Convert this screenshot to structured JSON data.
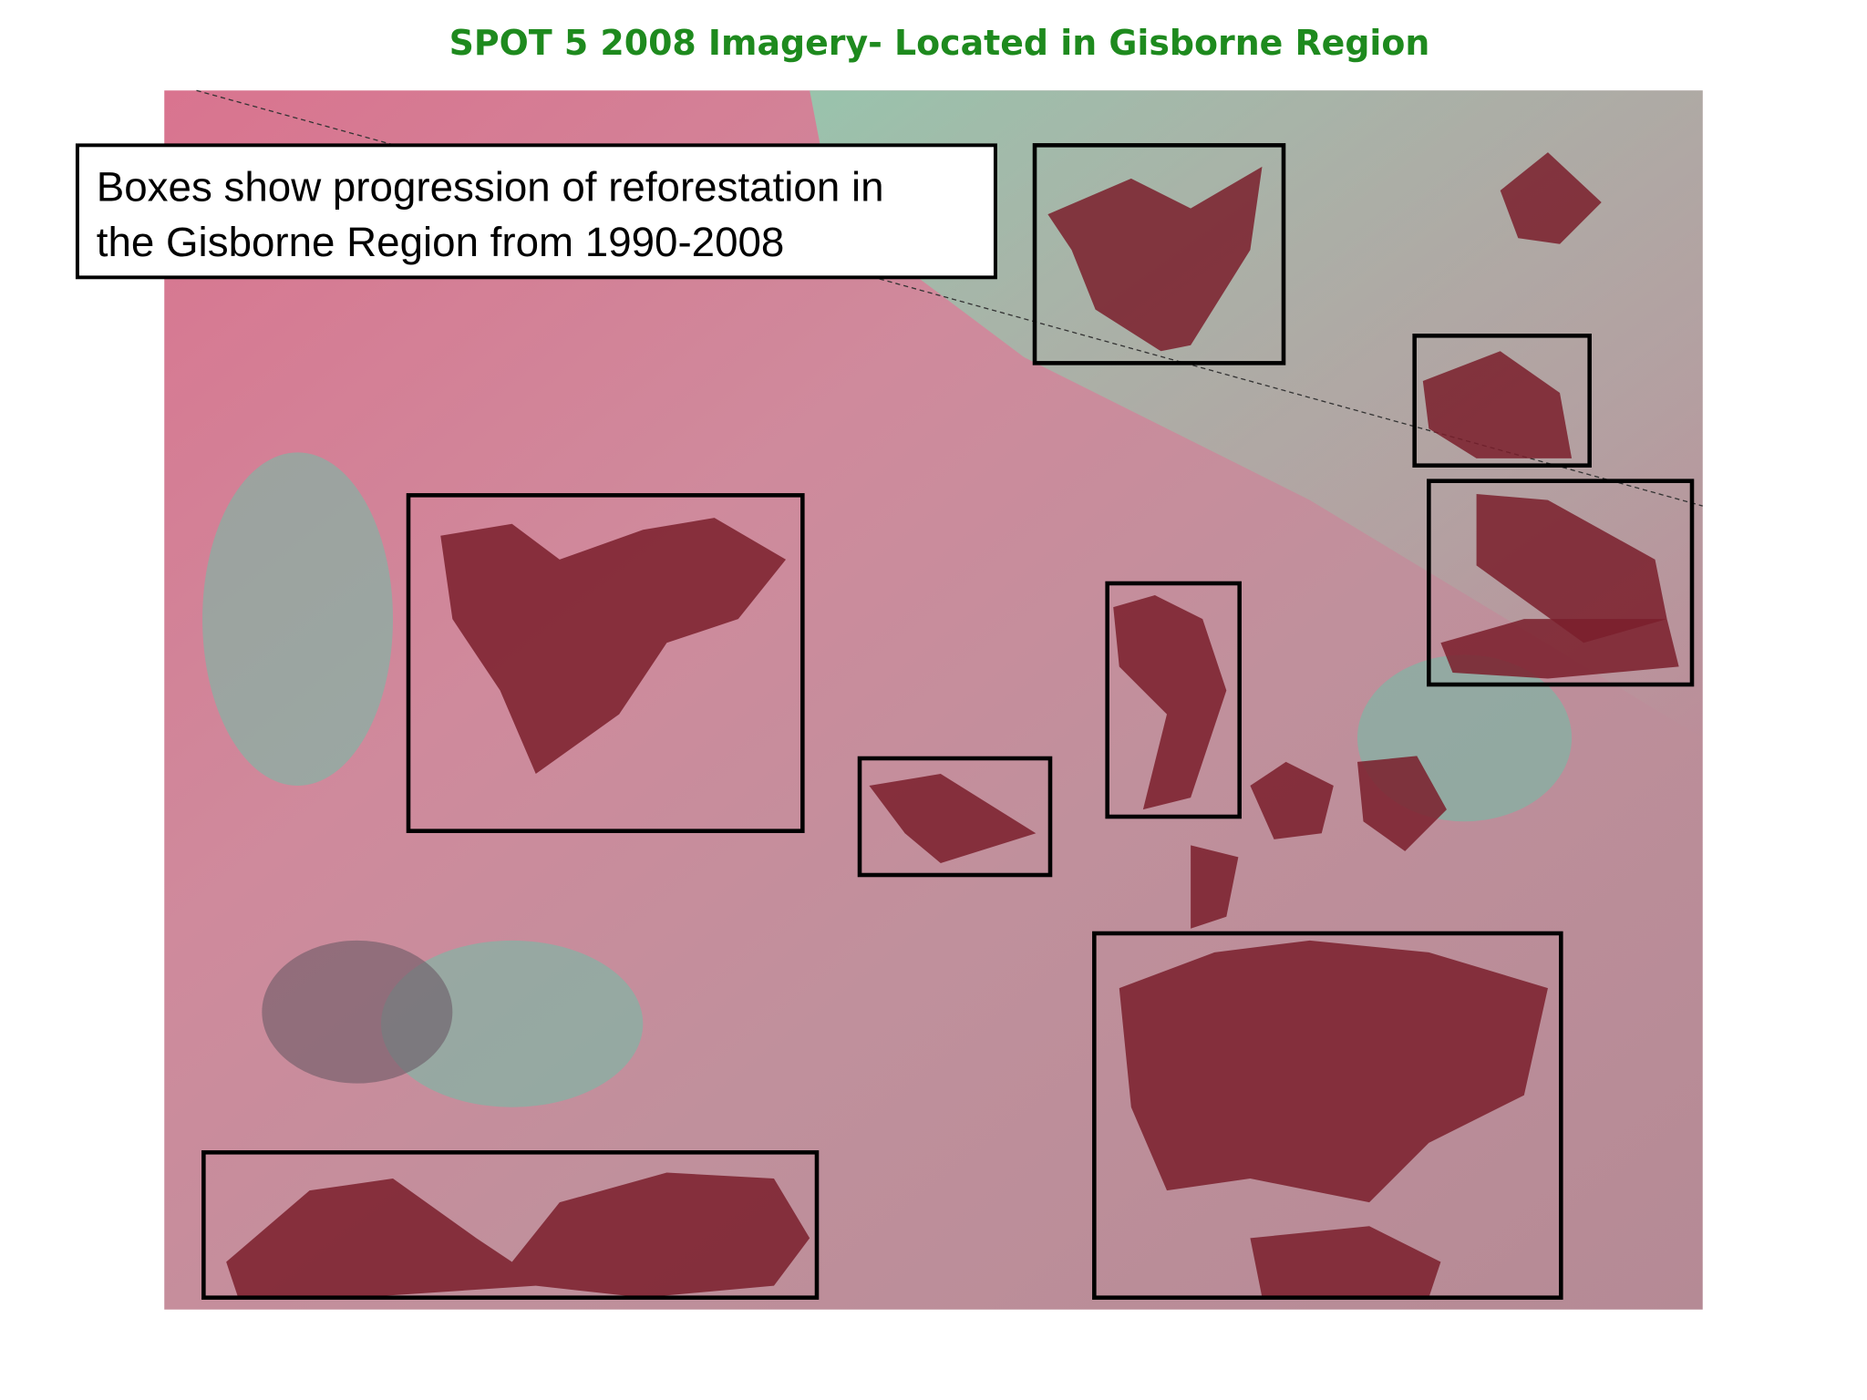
{
  "title": "SPOT 5 2008 Imagery- Located in Gisborne Region",
  "annotation": {
    "lines": [
      "Boxes show progression of reforestation in",
      "the Gisborne Region from 1990-2008"
    ]
  }
}
